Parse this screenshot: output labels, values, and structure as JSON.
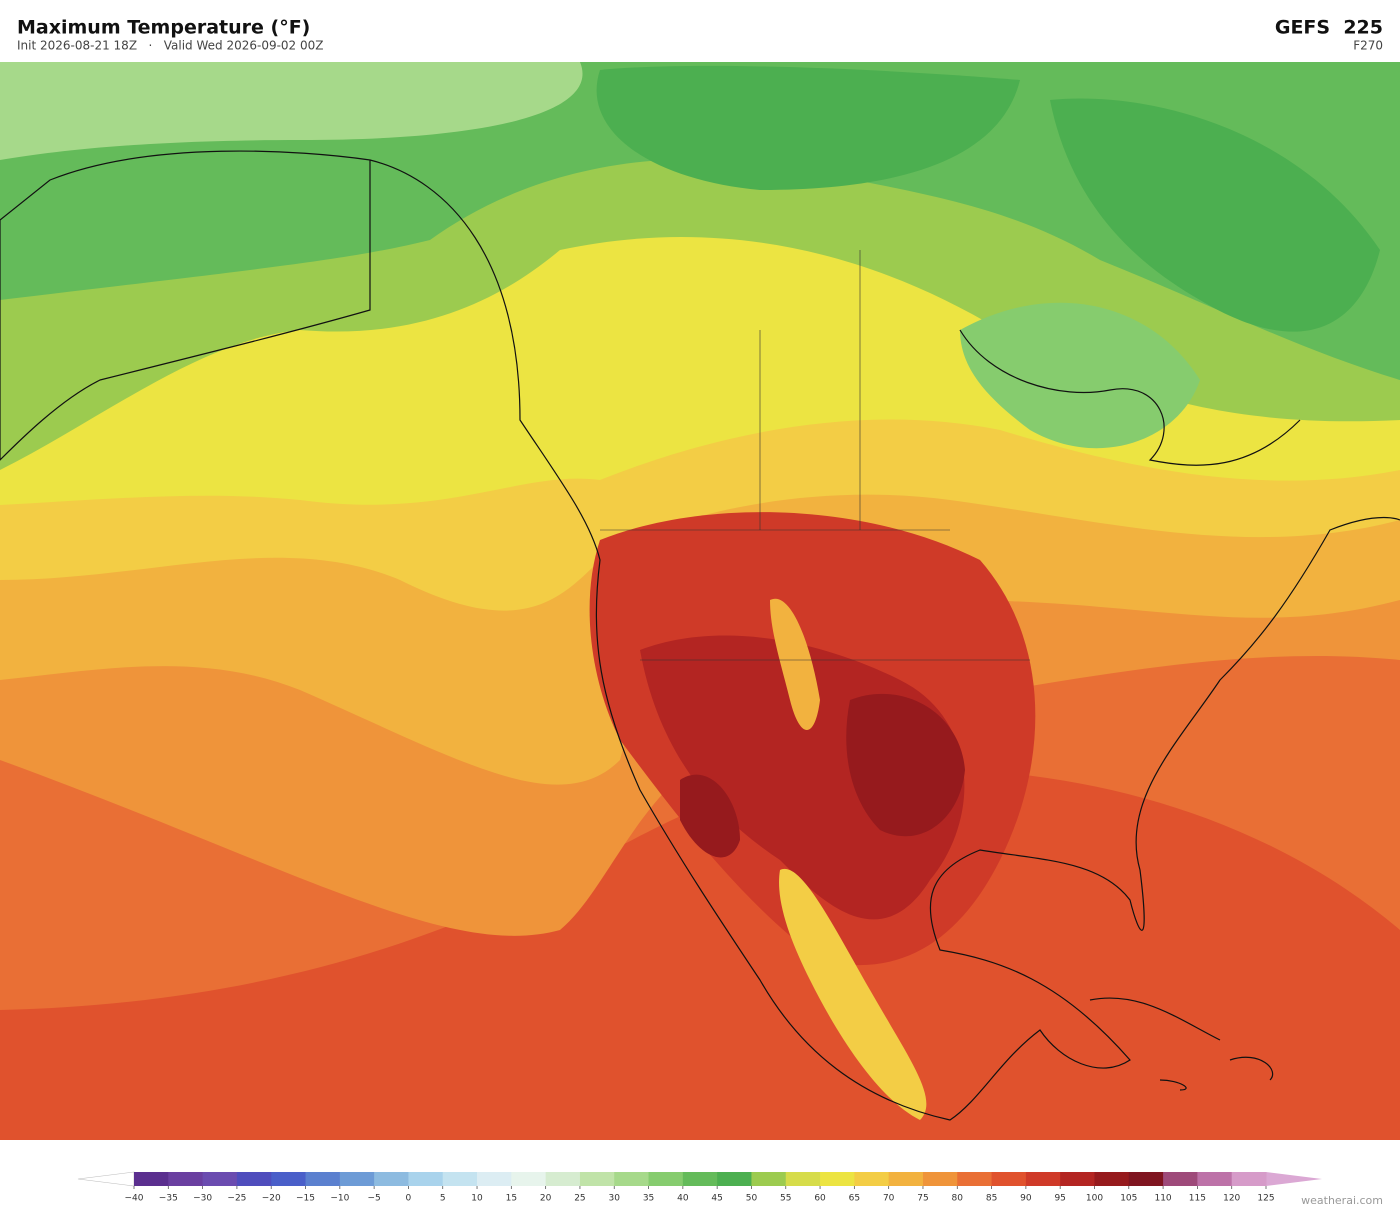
{
  "header": {
    "title": "Maximum Temperature  (°F)",
    "subtitle": "Init 2026-08-21 18Z   ·   Valid Wed 2026-09-02 00Z",
    "model": "GEFS  225",
    "forecast_hour": "F270"
  },
  "colorbar": {
    "ticks": [
      {
        "value": -40,
        "label": "−40"
      },
      {
        "value": -35,
        "label": "−35"
      },
      {
        "value": -30,
        "label": "−30"
      },
      {
        "value": -25,
        "label": "−25"
      },
      {
        "value": -20,
        "label": "−20"
      },
      {
        "value": -15,
        "label": "−15"
      },
      {
        "value": -10,
        "label": "−10"
      },
      {
        "value": -5,
        "label": "−5"
      },
      0,
      5,
      10,
      15,
      20,
      25,
      30,
      35,
      40,
      45,
      50,
      55,
      60,
      65,
      70,
      75,
      80,
      85,
      90,
      95,
      100,
      105,
      110,
      115,
      120,
      125
    ],
    "colors": [
      "#5b2f8f",
      "#6a3fa0",
      "#6b4cb0",
      "#4f4dbd",
      "#4a5fc9",
      "#5b80cf",
      "#6d9bd6",
      "#8dbbe0",
      "#a9d3ec",
      "#c4e3f0",
      "#dcedf3",
      "#e7f4ec",
      "#d6ecd0",
      "#c0e3a8",
      "#a6d98a",
      "#86cc6e",
      "#64bb5a",
      "#4caf50",
      "#9ccb4f",
      "#d6dc4a",
      "#ece442",
      "#f3cd45",
      "#f2b23f",
      "#ef943a",
      "#e96f35",
      "#e0522d",
      "#cf3a28",
      "#b32522",
      "#961a1d",
      "#7f1520",
      "#9e4a7a",
      "#bd72a8",
      "#d69bc9"
    ],
    "under_color": "#ffffff",
    "over_color": "#dba8d4"
  },
  "watermark": "weatherai.com"
}
